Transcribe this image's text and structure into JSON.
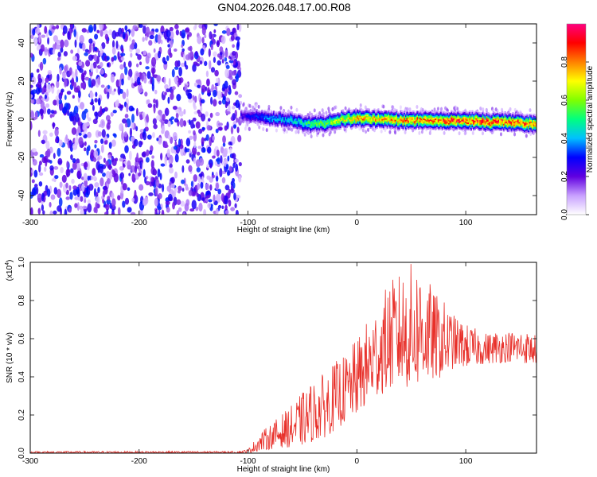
{
  "title": "GN04.2026.048.17.00.R08",
  "chart_data": [
    {
      "type": "heatmap",
      "xlabel": "Height of straight line (km)",
      "ylabel": "Frequency (Hz)",
      "xlim": [
        -300,
        165
      ],
      "ylim": [
        -50,
        50
      ],
      "xticks": [
        -300,
        -200,
        -100,
        0,
        100
      ],
      "yticks": [
        -40,
        -20,
        0,
        20,
        40
      ],
      "colorbar": {
        "label": "Normalized spectral amplitude",
        "range": [
          0.0,
          1.0
        ],
        "ticks": [
          "0.0",
          "0.2",
          "0.4",
          "0.6",
          "0.8"
        ],
        "colors": [
          "#ffffff",
          "#c8a0ff",
          "#6000e0",
          "#0000ff",
          "#00c0ff",
          "#00ff80",
          "#80ff00",
          "#ffff00",
          "#ff8000",
          "#ff0000",
          "#ff0080"
        ]
      },
      "noise_region_x": [
        -300,
        -107
      ],
      "signal_ridge": {
        "x": [
          -107,
          -95,
          -80,
          -60,
          -45,
          -30,
          -15,
          0,
          20,
          40,
          60,
          80,
          100,
          120,
          140,
          165
        ],
        "freq_hz": [
          2,
          1.5,
          0.5,
          -0.5,
          -2.5,
          -2,
          0,
          0.5,
          0,
          -0.5,
          -0.5,
          -0.5,
          -0.5,
          -1.5,
          -1.5,
          -2.5
        ],
        "amplitude": [
          0.25,
          0.3,
          0.4,
          0.45,
          0.55,
          0.6,
          0.7,
          0.8,
          0.8,
          0.85,
          0.85,
          0.9,
          0.9,
          0.95,
          0.9,
          0.85
        ]
      }
    },
    {
      "type": "line",
      "xlabel": "Height of straight line (km)",
      "ylabel": "SNR (10 * v/v)",
      "multiplier_label": "(x10",
      "multiplier_exp": "4",
      "multiplier_close": ")",
      "xlim": [
        -300,
        165
      ],
      "ylim": [
        0.0,
        1.0
      ],
      "xticks": [
        -300,
        -200,
        -100,
        0,
        100
      ],
      "yticks": [
        "0.0",
        "0.2",
        "0.4",
        "0.6",
        "0.8",
        "1.0"
      ],
      "color": "#e8302a",
      "series": [
        {
          "x": [
            -300,
            -200,
            -110,
            -100,
            -90,
            -80,
            -70,
            -60,
            -50,
            -40,
            -30,
            -20,
            -10,
            0,
            10,
            20,
            30,
            40,
            50,
            60,
            70,
            80,
            90,
            100,
            110,
            120,
            130,
            140,
            150,
            165
          ],
          "envelope_low": [
            0.0,
            0.0,
            0.0,
            0.0,
            0.01,
            0.02,
            0.03,
            0.03,
            0.04,
            0.06,
            0.08,
            0.12,
            0.16,
            0.2,
            0.25,
            0.3,
            0.33,
            0.35,
            0.33,
            0.36,
            0.38,
            0.4,
            0.45,
            0.45,
            0.46,
            0.47,
            0.47,
            0.48,
            0.47,
            0.47
          ],
          "envelope_high": [
            0.01,
            0.01,
            0.01,
            0.02,
            0.1,
            0.15,
            0.2,
            0.25,
            0.32,
            0.38,
            0.42,
            0.48,
            0.52,
            0.6,
            0.7,
            0.8,
            0.9,
            0.95,
            1.0,
            1.0,
            0.85,
            0.8,
            0.72,
            0.68,
            0.65,
            0.63,
            0.65,
            0.64,
            0.65,
            0.62
          ]
        }
      ]
    }
  ]
}
